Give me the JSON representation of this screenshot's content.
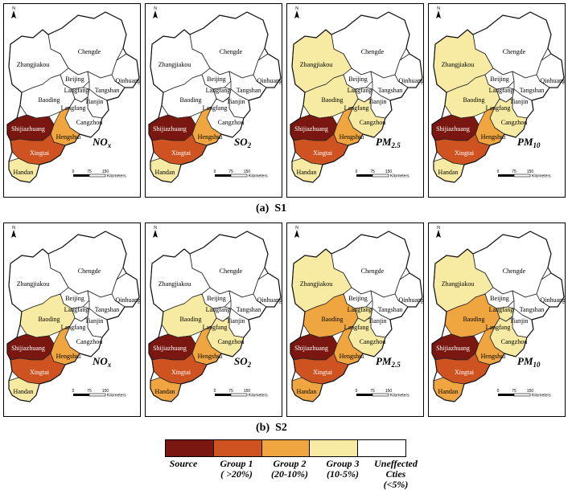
{
  "figure": {
    "row_labels": [
      {
        "id": "a",
        "letter": "(a)",
        "name": "S1"
      },
      {
        "id": "b",
        "letter": "(b)",
        "name": "S2"
      }
    ],
    "panels": [
      {
        "row": "a",
        "pollutant": "NOx",
        "assign": {
          "Shijiazhuang": "source",
          "Xingtai": "g1",
          "Hengshui": "g2",
          "Handan": "g3"
        }
      },
      {
        "row": "a",
        "pollutant": "SO2",
        "assign": {
          "Shijiazhuang": "source",
          "Xingtai": "g1",
          "Hengshui": "g2",
          "Handan": "g3"
        }
      },
      {
        "row": "a",
        "pollutant": "PM2.5",
        "assign": {
          "Shijiazhuang": "source",
          "Xingtai": "g1",
          "Hengshui": "g2",
          "Handan": "g3",
          "Baoding": "g3",
          "Zhangjiakou": "g3",
          "Cangzhou": "g3"
        }
      },
      {
        "row": "a",
        "pollutant": "PM10",
        "assign": {
          "Shijiazhuang": "source",
          "Xingtai": "g1",
          "Hengshui": "g2",
          "Handan": "g3",
          "Baoding": "g3",
          "Zhangjiakou": "g3",
          "Cangzhou": "g3"
        }
      },
      {
        "row": "b",
        "pollutant": "NOx",
        "assign": {
          "Shijiazhuang": "source",
          "Xingtai": "g1",
          "Hengshui": "g2",
          "Handan": "g3",
          "Baoding": "g3"
        }
      },
      {
        "row": "b",
        "pollutant": "SO2",
        "assign": {
          "Shijiazhuang": "source",
          "Xingtai": "g1",
          "Hengshui": "g2",
          "Handan": "g2",
          "Baoding": "g3",
          "Cangzhou": "g3"
        }
      },
      {
        "row": "b",
        "pollutant": "PM2.5",
        "assign": {
          "Shijiazhuang": "source",
          "Xingtai": "g1",
          "Hengshui": "g2",
          "Handan": "g2",
          "Baoding": "g2",
          "Zhangjiakou": "g3",
          "Cangzhou": "g3",
          "Langfang": "g3"
        }
      },
      {
        "row": "b",
        "pollutant": "PM10",
        "assign": {
          "Shijiazhuang": "source",
          "Xingtai": "g1",
          "Hengshui": "g2",
          "Handan": "g2",
          "Baoding": "g2",
          "Zhangjiakou": "g3",
          "Cangzhou": "g3",
          "Langfang": "g3"
        }
      }
    ],
    "pollutant_labels": {
      "NOx": {
        "base": "NO",
        "sub": "x"
      },
      "SO2": {
        "base": "SO",
        "sub": "2"
      },
      "PM2.5": {
        "base": "PM",
        "sub": "2.5"
      },
      "PM10": {
        "base": "PM",
        "sub": "10"
      }
    },
    "city_labels": [
      "Chengde",
      "Zhangjiakou",
      "Beijing",
      "Qinhuangdao",
      "Langfang",
      "Tangshan",
      "Tianjin",
      "Baoding",
      "Langfang",
      "Cangzhou",
      "Shijiazhuang",
      "Hengshui",
      "Xingtai",
      "Handan"
    ],
    "north_arrow": "N",
    "scale_bar": {
      "ticks": [
        "0",
        "75",
        "150"
      ],
      "unit": "Kilometers"
    },
    "colors": {
      "source": "#7a1710",
      "g1": "#cf5321",
      "g2": "#f0a640",
      "g3": "#f7eba3",
      "none": "#ffffff"
    },
    "legend": [
      {
        "key": "source",
        "name": "Source",
        "range": ""
      },
      {
        "key": "g1",
        "name": "Group 1",
        "range": "( >20%)"
      },
      {
        "key": "g2",
        "name": "Group 2",
        "range": "(20-10%)"
      },
      {
        "key": "g3",
        "name": "Group 3",
        "range": "(10-5%)"
      },
      {
        "key": "none",
        "name": "Uneffected Cties",
        "range": "(<5%)"
      }
    ]
  }
}
